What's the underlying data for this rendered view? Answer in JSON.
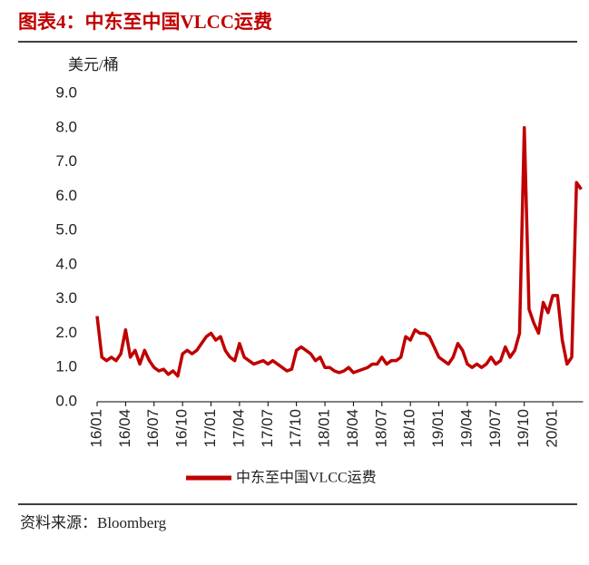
{
  "chart_data": {
    "type": "line",
    "title": "图表4：中东至中国VLCC运费",
    "y_label": "美元/桶",
    "source": "资料来源：Bloomberg",
    "categories": [
      "16/01",
      null,
      null,
      null,
      null,
      null,
      "16/04",
      null,
      null,
      null,
      null,
      null,
      "16/07",
      null,
      null,
      null,
      null,
      null,
      "16/10",
      null,
      null,
      null,
      null,
      null,
      "17/01",
      null,
      null,
      null,
      null,
      null,
      "17/04",
      null,
      null,
      null,
      null,
      null,
      "17/07",
      null,
      null,
      null,
      null,
      null,
      "17/10",
      null,
      null,
      null,
      null,
      null,
      "18/01",
      null,
      null,
      null,
      null,
      null,
      "18/04",
      null,
      null,
      null,
      null,
      null,
      "18/07",
      null,
      null,
      null,
      null,
      null,
      "18/10",
      null,
      null,
      null,
      null,
      null,
      "19/01",
      null,
      null,
      null,
      null,
      null,
      "19/04",
      null,
      null,
      null,
      null,
      null,
      "19/07",
      null,
      null,
      null,
      null,
      null,
      "19/10",
      null,
      null,
      null,
      null,
      null,
      "20/01",
      null,
      null,
      null,
      null,
      null,
      null
    ],
    "series": [
      {
        "name": "中东至中国VLCC运费",
        "color": "#c00000",
        "values": [
          2.5,
          1.3,
          1.2,
          1.3,
          1.2,
          1.4,
          2.1,
          1.3,
          1.5,
          1.1,
          1.5,
          1.2,
          1.0,
          0.9,
          0.95,
          0.8,
          0.9,
          0.75,
          1.4,
          1.5,
          1.4,
          1.5,
          1.7,
          1.9,
          2.0,
          1.8,
          1.9,
          1.5,
          1.3,
          1.2,
          1.7,
          1.3,
          1.2,
          1.1,
          1.15,
          1.2,
          1.1,
          1.2,
          1.1,
          1.0,
          0.9,
          0.95,
          1.5,
          1.6,
          1.5,
          1.4,
          1.2,
          1.3,
          1.0,
          1.0,
          0.9,
          0.85,
          0.9,
          1.0,
          0.85,
          0.9,
          0.95,
          1.0,
          1.1,
          1.1,
          1.3,
          1.1,
          1.2,
          1.2,
          1.3,
          1.9,
          1.8,
          2.1,
          2.0,
          2.0,
          1.9,
          1.6,
          1.3,
          1.2,
          1.1,
          1.3,
          1.7,
          1.5,
          1.1,
          1.0,
          1.1,
          1.0,
          1.1,
          1.3,
          1.1,
          1.2,
          1.6,
          1.3,
          1.5,
          2.0,
          8.0,
          2.7,
          2.3,
          2.0,
          2.9,
          2.6,
          3.1,
          3.1,
          1.8,
          1.1,
          1.3,
          6.4,
          6.2
        ]
      }
    ],
    "ylim": [
      0,
      9
    ],
    "yticks": [
      {
        "value": 0,
        "label": "0.0"
      },
      {
        "value": 1,
        "label": "1.0"
      },
      {
        "value": 2,
        "label": "2.0"
      },
      {
        "value": 3,
        "label": "3.0"
      },
      {
        "value": 4,
        "label": "4.0"
      },
      {
        "value": 5,
        "label": "5.0"
      },
      {
        "value": 6,
        "label": "6.0"
      },
      {
        "value": 7,
        "label": "7.0"
      },
      {
        "value": 8,
        "label": "8.0"
      },
      {
        "value": 9,
        "label": "9.0"
      }
    ]
  }
}
